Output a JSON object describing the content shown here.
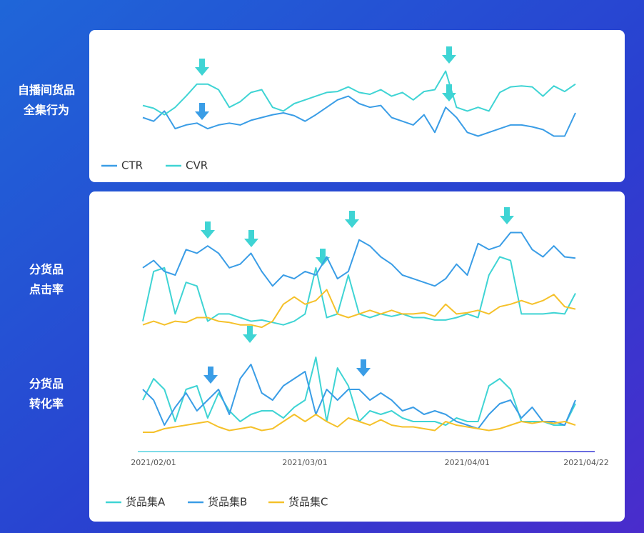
{
  "chart_data": [
    {
      "type": "line",
      "label_lines": [
        "自播间货品",
        "全集行为"
      ],
      "ylim": [
        0,
        100
      ],
      "series": [
        {
          "name": "CTR",
          "color": "#3a9de6",
          "values": [
            35,
            31,
            42,
            23,
            27,
            29,
            23,
            27,
            29,
            27,
            32,
            35,
            38,
            40,
            37,
            31,
            38,
            46,
            54,
            58,
            50,
            46,
            48,
            35,
            31,
            27,
            38,
            19,
            46,
            35,
            19,
            15,
            19,
            23,
            27,
            27,
            25,
            22,
            15,
            15,
            40
          ]
        },
        {
          "name": "CVR",
          "color": "#3fd4d4",
          "values": [
            48,
            45,
            38,
            46,
            58,
            71,
            71,
            65,
            46,
            52,
            62,
            65,
            46,
            42,
            50,
            54,
            58,
            62,
            63,
            68,
            62,
            60,
            65,
            58,
            62,
            54,
            63,
            65,
            85,
            46,
            42,
            46,
            42,
            62,
            68,
            69,
            68,
            58,
            69,
            63,
            71
          ]
        }
      ]
    },
    {
      "type": "line",
      "label_lines": [
        "分货品",
        "点击率"
      ],
      "ylim": [
        0,
        100
      ],
      "series": [
        {
          "name": "货品集A",
          "color": "#3fd4d4",
          "values": [
            12,
            53,
            56,
            18,
            44,
            41,
            12,
            18,
            18,
            15,
            12,
            13,
            11,
            9,
            12,
            18,
            56,
            15,
            18,
            50,
            18,
            15,
            18,
            16,
            18,
            15,
            15,
            13,
            13,
            15,
            18,
            15,
            50,
            65,
            62,
            18,
            18,
            18,
            19,
            18,
            35
          ]
        },
        {
          "name": "货品集B",
          "color": "#3a9de6",
          "values": [
            56,
            62,
            53,
            50,
            71,
            68,
            74,
            68,
            56,
            59,
            68,
            53,
            41,
            50,
            47,
            53,
            50,
            65,
            47,
            53,
            79,
            74,
            65,
            59,
            50,
            47,
            44,
            41,
            47,
            59,
            50,
            76,
            71,
            74,
            85,
            85,
            71,
            65,
            74,
            65,
            64
          ]
        },
        {
          "name": "货品集C",
          "color": "#f5c12a",
          "values": [
            9,
            12,
            9,
            12,
            11,
            15,
            15,
            12,
            11,
            9,
            9,
            7,
            12,
            26,
            32,
            26,
            29,
            38,
            18,
            15,
            18,
            21,
            18,
            21,
            18,
            18,
            19,
            16,
            26,
            18,
            19,
            21,
            18,
            24,
            26,
            29,
            26,
            29,
            34,
            24,
            22
          ]
        }
      ]
    },
    {
      "type": "line",
      "label_lines": [
        "分货品",
        "转化率"
      ],
      "ylim": [
        0,
        100
      ],
      "categories": [
        "2021/02/01",
        null,
        null,
        null,
        null,
        null,
        null,
        null,
        null,
        null,
        null,
        null,
        null,
        null,
        "2021/03/01",
        null,
        null,
        null,
        null,
        null,
        null,
        null,
        null,
        null,
        null,
        null,
        null,
        null,
        null,
        "2021/04/01",
        null,
        null,
        null,
        null,
        null,
        null,
        null,
        null,
        null,
        null,
        "2021/04/22"
      ],
      "series": [
        {
          "color": "#3fd4d4",
          "values": [
            44,
            68,
            56,
            20,
            56,
            60,
            24,
            52,
            32,
            20,
            28,
            32,
            32,
            24,
            36,
            44,
            92,
            20,
            80,
            60,
            20,
            32,
            28,
            32,
            24,
            20,
            20,
            20,
            16,
            24,
            20,
            20,
            60,
            68,
            56,
            20,
            20,
            20,
            16,
            16,
            40
          ]
        },
        {
          "color": "#3a9de6",
          "values": [
            56,
            44,
            16,
            36,
            52,
            32,
            44,
            56,
            28,
            68,
            84,
            52,
            44,
            60,
            68,
            76,
            28,
            56,
            44,
            56,
            56,
            44,
            52,
            44,
            32,
            36,
            28,
            32,
            28,
            20,
            16,
            12,
            28,
            40,
            44,
            24,
            36,
            20,
            20,
            16,
            44
          ]
        },
        {
          "color": "#f5c12a",
          "values": [
            8,
            8,
            12,
            14,
            16,
            18,
            20,
            14,
            10,
            12,
            14,
            10,
            12,
            20,
            28,
            20,
            28,
            20,
            14,
            24,
            20,
            16,
            22,
            16,
            14,
            14,
            12,
            10,
            20,
            16,
            14,
            12,
            10,
            12,
            16,
            20,
            18,
            20,
            18,
            20,
            16
          ]
        }
      ]
    }
  ]
}
